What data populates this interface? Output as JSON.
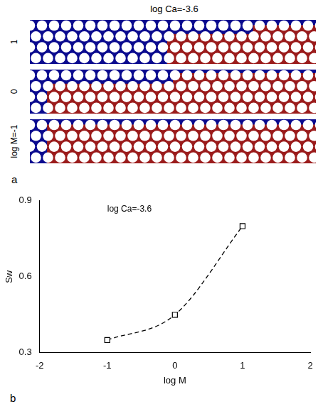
{
  "panel_a": {
    "letter": "a",
    "title": "log Ca=-3.6",
    "row_labels": [
      "1",
      "0",
      "log M=-1"
    ]
  },
  "chart_data": {
    "letter": "b",
    "type": "line",
    "title": "log Ca=-3.6",
    "x_label": "log M",
    "y_label": "Sw",
    "x": [
      -1,
      0,
      1
    ],
    "values": [
      0.35,
      0.45,
      0.8
    ],
    "color": "#000000",
    "marker": "square",
    "line_style": "dashed",
    "xlim": [
      -2,
      2
    ],
    "xticks": [
      -2,
      -1,
      0,
      1,
      2
    ],
    "ylim": [
      0.3,
      0.9
    ],
    "yticks": [
      0.3,
      0.6,
      0.9
    ],
    "grid": false,
    "legend": false
  }
}
